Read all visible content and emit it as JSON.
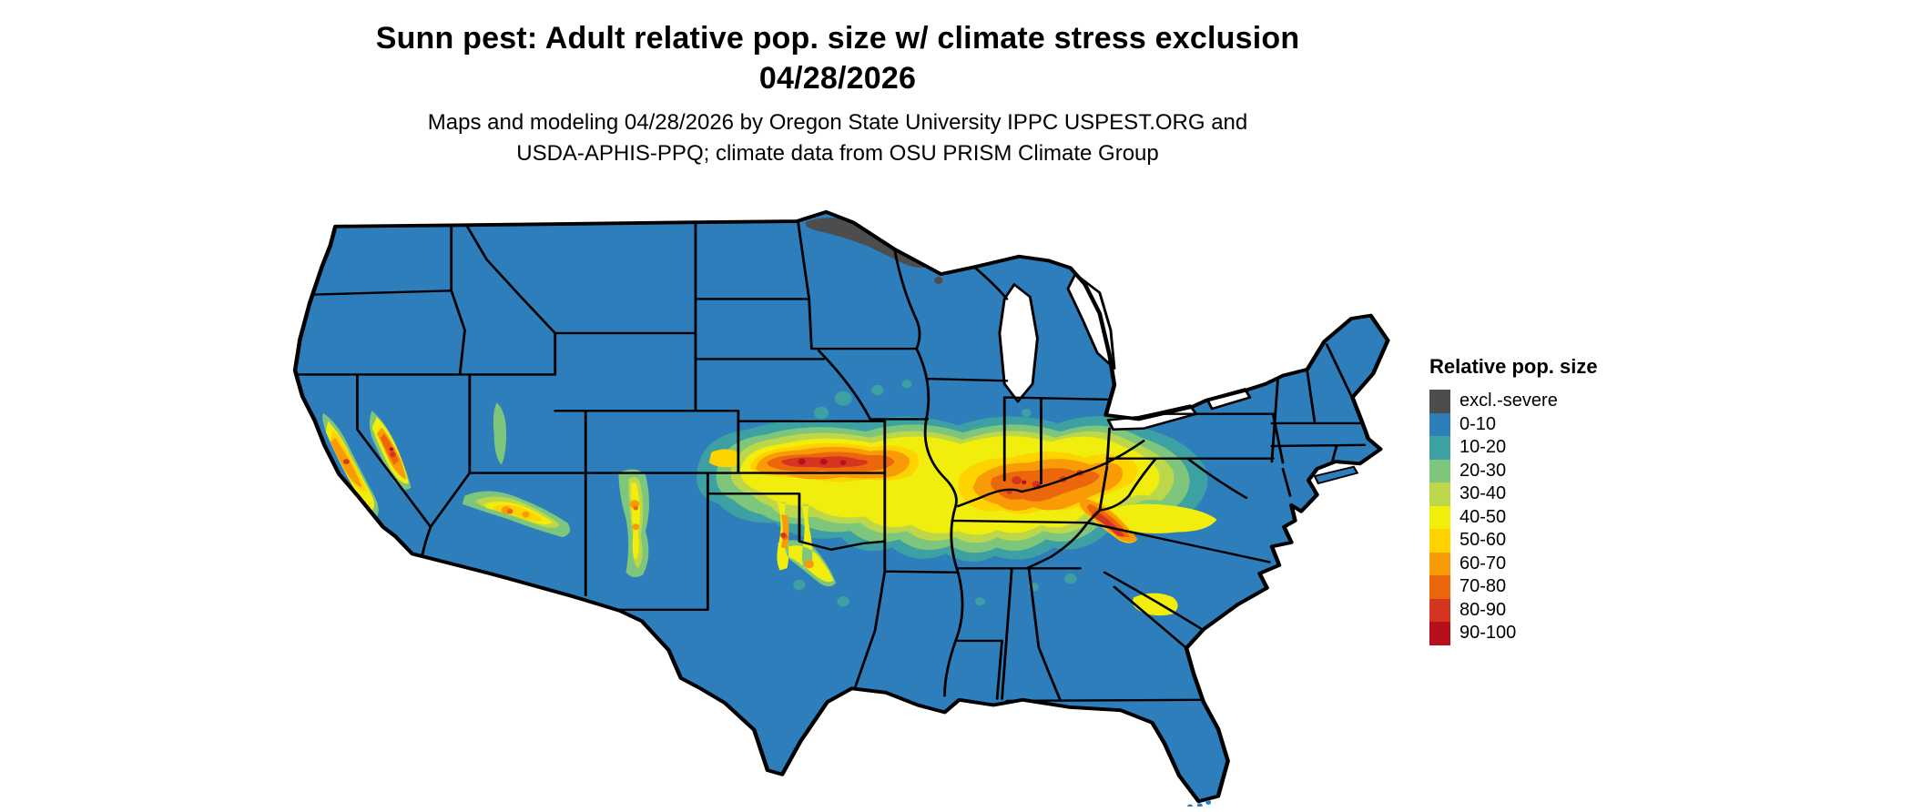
{
  "header": {
    "title_line1": "Sunn pest: Adult relative pop. size w/ climate stress exclusion",
    "title_line2": "04/28/2026",
    "subtitle_line1": "Maps and modeling 04/28/2026 by Oregon State University IPPC USPEST.ORG and",
    "subtitle_line2": "USDA-APHIS-PPQ; climate data from OSU PRISM Climate Group"
  },
  "legend": {
    "title": "Relative pop. size",
    "items": [
      {
        "label": "excl.-severe",
        "color": "#4d4d4d"
      },
      {
        "label": "0-10",
        "color": "#2e7ebc"
      },
      {
        "label": "10-20",
        "color": "#3da0a2"
      },
      {
        "label": "20-30",
        "color": "#7fc67d"
      },
      {
        "label": "30-40",
        "color": "#bcd84a"
      },
      {
        "label": "40-50",
        "color": "#f1ed0c"
      },
      {
        "label": "50-60",
        "color": "#ffd300"
      },
      {
        "label": "60-70",
        "color": "#f99b06"
      },
      {
        "label": "70-80",
        "color": "#ec660b"
      },
      {
        "label": "80-90",
        "color": "#d53420"
      },
      {
        "label": "90-100",
        "color": "#b8101a"
      }
    ]
  },
  "map": {
    "base_color": "#2e7ebc",
    "exclusion_color": "#4d4d4d"
  }
}
